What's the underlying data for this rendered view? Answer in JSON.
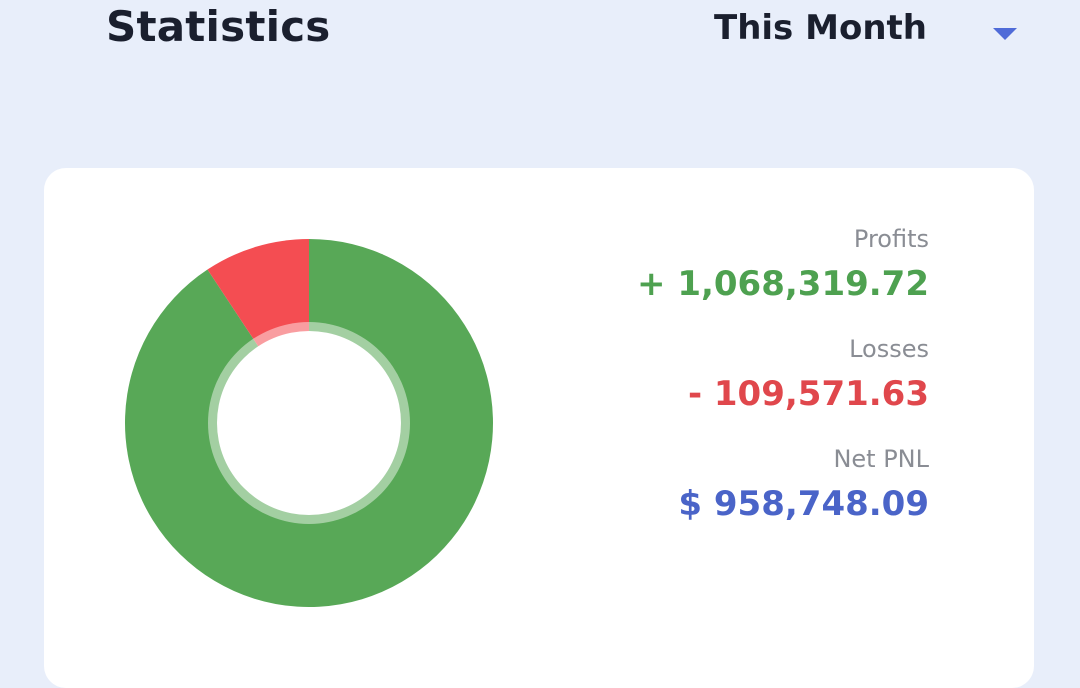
{
  "header": {
    "title": "Statistics",
    "period_label": "This Month"
  },
  "stats": {
    "profits": {
      "label": "Profits",
      "value": "+ 1,068,319.72",
      "color": "#4ea150"
    },
    "losses": {
      "label": "Losses",
      "value": "- 109,571.63",
      "color": "#e0474c"
    },
    "net": {
      "label": "Net PNL",
      "value": "$ 958,748.09",
      "color": "#4a64c8"
    }
  },
  "chart_data": {
    "type": "pie",
    "categories": [
      "Profits",
      "Losses"
    ],
    "values": [
      1068319.72,
      109571.63
    ],
    "colors": [
      "#58a857",
      "#f44d52"
    ]
  },
  "icons": {
    "caret": "caret-down-icon"
  }
}
